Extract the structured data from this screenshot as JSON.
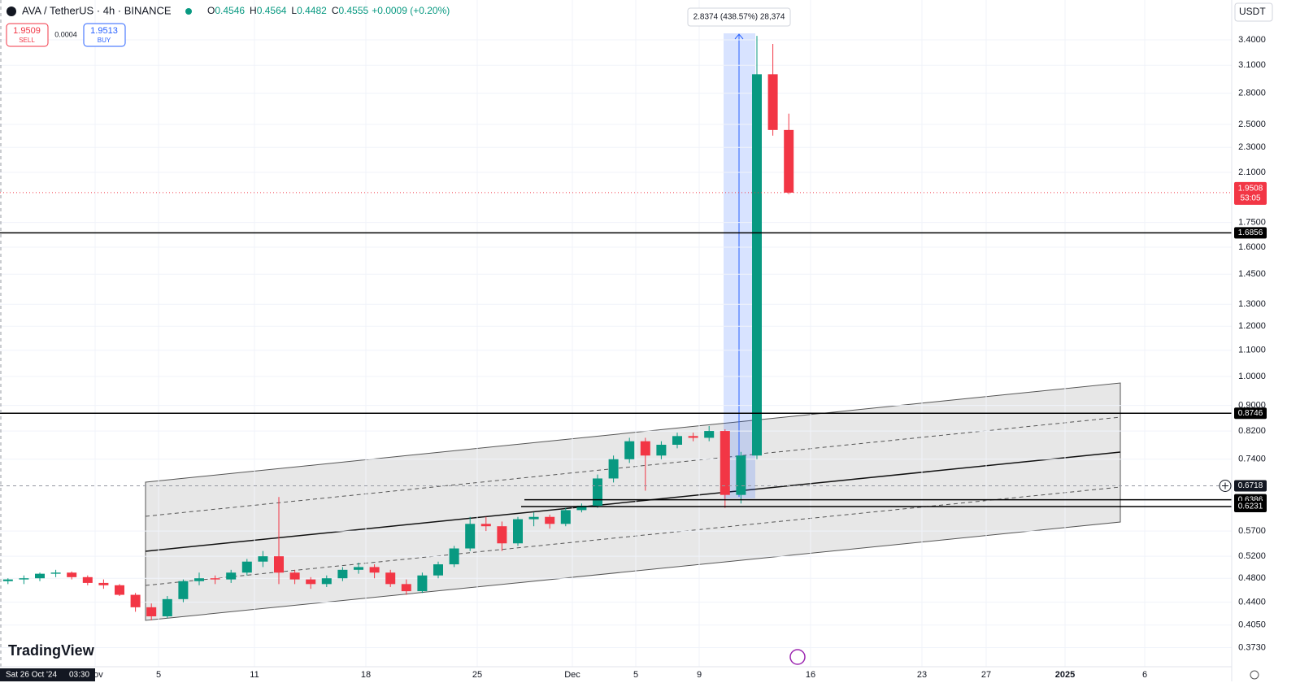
{
  "header": {
    "symbol": "AVA / TetherUS · 4h · BINANCE",
    "ohlc": [
      {
        "label": "O",
        "value": "0.4546"
      },
      {
        "label": "H",
        "value": "0.4564"
      },
      {
        "label": "L",
        "value": "0.4482"
      },
      {
        "label": "C",
        "value": "0.4555"
      }
    ],
    "change": "+0.0009 (+0.20%)"
  },
  "trade": {
    "sell_price": "1.9509",
    "sell_label": "SELL",
    "spread": "0.0004",
    "buy_price": "1.9513",
    "buy_label": "BUY"
  },
  "currency": "USDT",
  "measure_label": "2.8374 (438.57%) 28,374",
  "logo": "TradingView",
  "crosshair": {
    "date": "Sat 26 Oct '24",
    "time": "03:30",
    "price": 0.6718
  },
  "countdown": "53:05",
  "chart_data": {
    "type": "candlestick",
    "log_scale": true,
    "grid": true,
    "up_color": "#089981",
    "down_color": "#f23645",
    "categories": [
      null,
      null,
      null,
      null,
      null,
      null,
      null,
      null,
      null,
      null,
      null,
      null,
      null,
      null,
      null,
      null,
      null,
      null,
      null,
      null,
      null,
      null,
      null,
      null,
      null,
      null,
      null,
      null,
      null,
      null,
      null,
      null,
      null,
      null,
      null,
      null,
      null,
      null,
      null,
      null,
      null,
      null,
      null,
      null,
      null,
      null,
      null,
      null,
      null,
      null
    ],
    "open": [
      0.475,
      0.478,
      0.48,
      0.488,
      0.49,
      0.482,
      0.472,
      0.468,
      0.452,
      0.432,
      0.418,
      0.445,
      0.475,
      0.48,
      0.478,
      0.49,
      0.51,
      0.52,
      0.49,
      0.478,
      0.47,
      0.48,
      0.495,
      0.5,
      0.49,
      0.47,
      0.458,
      0.485,
      0.505,
      0.535,
      0.585,
      0.58,
      0.545,
      0.595,
      0.6,
      0.585,
      0.615,
      0.625,
      0.69,
      0.74,
      0.79,
      0.75,
      0.78,
      0.805,
      0.8,
      0.82,
      0.65,
      0.75,
      3.0,
      2.45
    ],
    "high": [
      0.48,
      0.485,
      0.49,
      0.495,
      0.492,
      0.485,
      0.478,
      0.47,
      0.455,
      0.438,
      0.45,
      0.478,
      0.49,
      0.485,
      0.495,
      0.515,
      0.53,
      0.645,
      0.495,
      0.482,
      0.485,
      0.5,
      0.508,
      0.505,
      0.495,
      0.478,
      0.49,
      0.51,
      0.54,
      0.6,
      0.6,
      0.59,
      0.6,
      0.61,
      0.605,
      0.62,
      0.63,
      0.7,
      0.75,
      0.8,
      0.8,
      0.79,
      0.815,
      0.815,
      0.835,
      0.825,
      0.76,
      3.45,
      3.35,
      2.6
    ],
    "low": [
      0.47,
      0.47,
      0.475,
      0.482,
      0.478,
      0.468,
      0.462,
      0.45,
      0.425,
      0.412,
      0.415,
      0.44,
      0.468,
      0.47,
      0.472,
      0.485,
      0.5,
      0.47,
      0.47,
      0.462,
      0.465,
      0.475,
      0.488,
      0.48,
      0.465,
      0.452,
      0.455,
      0.48,
      0.5,
      0.53,
      0.57,
      0.53,
      0.54,
      0.58,
      0.575,
      0.58,
      0.61,
      0.62,
      0.68,
      0.73,
      0.66,
      0.74,
      0.77,
      0.79,
      0.79,
      0.62,
      0.63,
      0.74,
      2.4,
      1.94
    ],
    "close": [
      0.478,
      0.48,
      0.488,
      0.49,
      0.482,
      0.472,
      0.468,
      0.452,
      0.432,
      0.418,
      0.445,
      0.475,
      0.48,
      0.478,
      0.49,
      0.51,
      0.52,
      0.49,
      0.478,
      0.47,
      0.48,
      0.495,
      0.5,
      0.49,
      0.47,
      0.458,
      0.485,
      0.505,
      0.535,
      0.585,
      0.58,
      0.545,
      0.595,
      0.6,
      0.585,
      0.615,
      0.625,
      0.69,
      0.74,
      0.79,
      0.75,
      0.78,
      0.805,
      0.8,
      0.82,
      0.65,
      0.75,
      3.0,
      2.45,
      1.9508
    ],
    "ylim": [
      0.348,
      3.93
    ],
    "yticks": [
      {
        "value": 3.4,
        "label": "3.4000"
      },
      {
        "value": 3.1,
        "label": "3.1000"
      },
      {
        "value": 2.8,
        "label": "2.8000"
      },
      {
        "value": 2.5,
        "label": "2.5000"
      },
      {
        "value": 2.3,
        "label": "2.3000"
      },
      {
        "value": 2.1,
        "label": "2.1000"
      },
      {
        "value": 1.75,
        "label": "1.7500"
      },
      {
        "value": 1.6,
        "label": "1.6000"
      },
      {
        "value": 1.45,
        "label": "1.4500"
      },
      {
        "value": 1.3,
        "label": "1.3000"
      },
      {
        "value": 1.2,
        "label": "1.2000"
      },
      {
        "value": 1.1,
        "label": "1.1000"
      },
      {
        "value": 1.0,
        "label": "1.0000"
      },
      {
        "value": 0.9,
        "label": "0.9000"
      },
      {
        "value": 0.82,
        "label": "0.8200"
      },
      {
        "value": 0.74,
        "label": "0.7400"
      },
      {
        "value": 0.57,
        "label": "0.5700"
      },
      {
        "value": 0.52,
        "label": "0.5200"
      },
      {
        "value": 0.48,
        "label": "0.4800"
      },
      {
        "value": 0.44,
        "label": "0.4400"
      },
      {
        "value": 0.405,
        "label": "0.4050"
      },
      {
        "value": 0.373,
        "label": "0.3730"
      }
    ],
    "x_labels": [
      "Nov",
      "5",
      "11",
      "18",
      "25",
      "Dec",
      "5",
      "9",
      "16",
      "23",
      "27",
      "2025",
      "6"
    ],
    "levels": [
      1.6856,
      0.8746,
      0.6386,
      0.6231
    ],
    "last_price": 1.9508
  }
}
